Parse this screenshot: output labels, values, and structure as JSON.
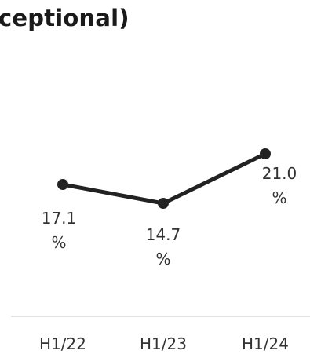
{
  "chart_data": {
    "type": "line",
    "title": "ceptional)",
    "categories": [
      "H1/22",
      "H1/23",
      "H1/24"
    ],
    "values": [
      17.1,
      14.7,
      21.0
    ],
    "value_suffix": "%",
    "grid": false,
    "colors": {
      "line": "#222222",
      "axis": "#d9d9d9",
      "text": "#333333"
    }
  }
}
